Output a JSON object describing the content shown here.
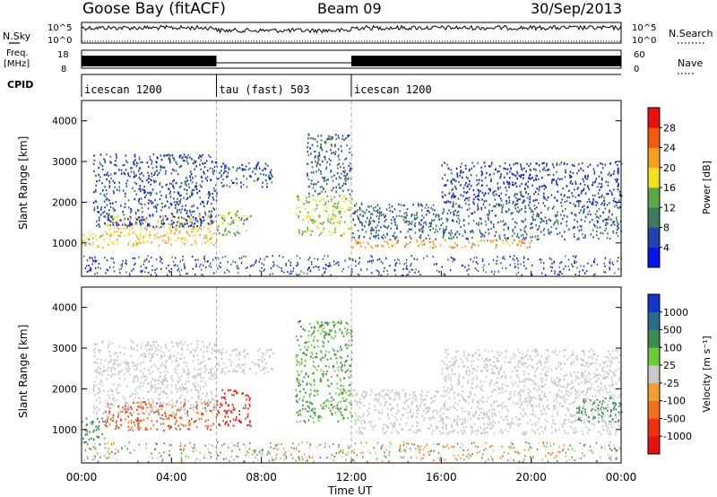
{
  "header": {
    "station": "Goose Bay (fitACF)",
    "beam": "Beam 09",
    "date": "30/Sep/2013"
  },
  "nsky_panel": {
    "label_left": "N.Sky",
    "label_right": "N.Search",
    "ticks_left": [
      "10^5",
      "10^0"
    ],
    "ticks_right": [
      "10^5",
      "10^0"
    ]
  },
  "freq_panel": {
    "label_left_1": "Freq.",
    "label_left_2": "[MHz]",
    "label_right": "Nave",
    "ticks_left": [
      "18",
      "8"
    ],
    "ticks_right": [
      "60",
      "0"
    ]
  },
  "cpid_panel": {
    "label": "CPID",
    "segments": [
      {
        "label": "icescan 1200",
        "start_h": 0,
        "end_h": 6
      },
      {
        "label": "tau (fast) 503",
        "start_h": 6,
        "end_h": 12
      },
      {
        "label": "icescan 1200",
        "start_h": 12,
        "end_h": 24
      }
    ]
  },
  "x_axis": {
    "label": "Time UT",
    "ticks": [
      "00:00",
      "04:00",
      "08:00",
      "12:00",
      "16:00",
      "20:00",
      "00:00"
    ],
    "tick_hours": [
      0,
      4,
      8,
      12,
      16,
      20,
      24
    ]
  },
  "chart_data": [
    {
      "type": "heatmap",
      "name": "power-panel",
      "ylabel": "Slant Range [km]",
      "ylim": [
        180,
        4500
      ],
      "xlim_hours": [
        0,
        24
      ],
      "yticks": [
        1000,
        2000,
        3000,
        4000
      ],
      "colorbar": {
        "label": "Power [dB]",
        "tick_labels": [
          "4",
          "8",
          "12",
          "16",
          "20",
          "24",
          "28"
        ],
        "colors": [
          "#0a14e6",
          "#2244aa",
          "#3d7a5e",
          "#5aa84a",
          "#f0e020",
          "#f5a020",
          "#f05a10",
          "#e81010"
        ]
      },
      "regions": [
        {
          "t0": 0.0,
          "t1": 1.0,
          "r0": 900,
          "r1": 1300,
          "value": 18
        },
        {
          "t0": 1.0,
          "t1": 6.0,
          "r0": 950,
          "r1": 1700,
          "value": 20
        },
        {
          "t0": 0.5,
          "t1": 6.0,
          "r0": 1400,
          "r1": 3200,
          "value": 6
        },
        {
          "t0": 6.0,
          "t1": 7.5,
          "r0": 1200,
          "r1": 1800,
          "value": 14
        },
        {
          "t0": 6.0,
          "t1": 8.5,
          "r0": 2400,
          "r1": 3000,
          "value": 6
        },
        {
          "t0": 9.5,
          "t1": 12.0,
          "r0": 1200,
          "r1": 2200,
          "value": 16
        },
        {
          "t0": 10.0,
          "t1": 12.0,
          "r0": 2200,
          "r1": 3700,
          "value": 8
        },
        {
          "t0": 12.0,
          "t1": 20.0,
          "r0": 900,
          "r1": 1100,
          "value": 22
        },
        {
          "t0": 12.0,
          "t1": 24.0,
          "r0": 1100,
          "r1": 2000,
          "value": 8
        },
        {
          "t0": 16.0,
          "t1": 24.0,
          "r0": 2000,
          "r1": 3000,
          "value": 5
        }
      ]
    },
    {
      "type": "heatmap",
      "name": "velocity-panel",
      "ylabel": "Slant Range [km]",
      "ylim": [
        180,
        4500
      ],
      "xlim_hours": [
        0,
        24
      ],
      "yticks": [
        1000,
        2000,
        3000,
        4000
      ],
      "colorbar": {
        "label": "Velocity [m s⁻¹]",
        "tick_labels": [
          "1000",
          "500",
          "100",
          "25",
          "-25",
          "-100",
          "-500",
          "-1000"
        ],
        "colors": [
          "#1535c8",
          "#2a6a8a",
          "#3f8a50",
          "#6ccb3a",
          "#c8c8c8",
          "#f0a030",
          "#f07020",
          "#f03010",
          "#e81010"
        ]
      },
      "regions": [
        {
          "t0": 0.0,
          "t1": 1.0,
          "r0": 700,
          "r1": 1300,
          "value": 80
        },
        {
          "t0": 1.0,
          "t1": 6.0,
          "r0": 1000,
          "r1": 1700,
          "value": -300
        },
        {
          "t0": 6.0,
          "t1": 7.5,
          "r0": 1100,
          "r1": 2000,
          "value": -700
        },
        {
          "t0": 0.5,
          "t1": 6.0,
          "r0": 1400,
          "r1": 3200,
          "value": 0
        },
        {
          "t0": 6.0,
          "t1": 8.5,
          "r0": 2400,
          "r1": 3000,
          "value": 0
        },
        {
          "t0": 9.5,
          "t1": 12.0,
          "r0": 1200,
          "r1": 3700,
          "value": 60
        },
        {
          "t0": 12.0,
          "t1": 24.0,
          "r0": 900,
          "r1": 2000,
          "value": 0
        },
        {
          "t0": 16.0,
          "t1": 24.0,
          "r0": 2000,
          "r1": 3000,
          "value": 0
        },
        {
          "t0": 22.0,
          "t1": 24.0,
          "r0": 1200,
          "r1": 1800,
          "value": 200
        }
      ]
    }
  ]
}
